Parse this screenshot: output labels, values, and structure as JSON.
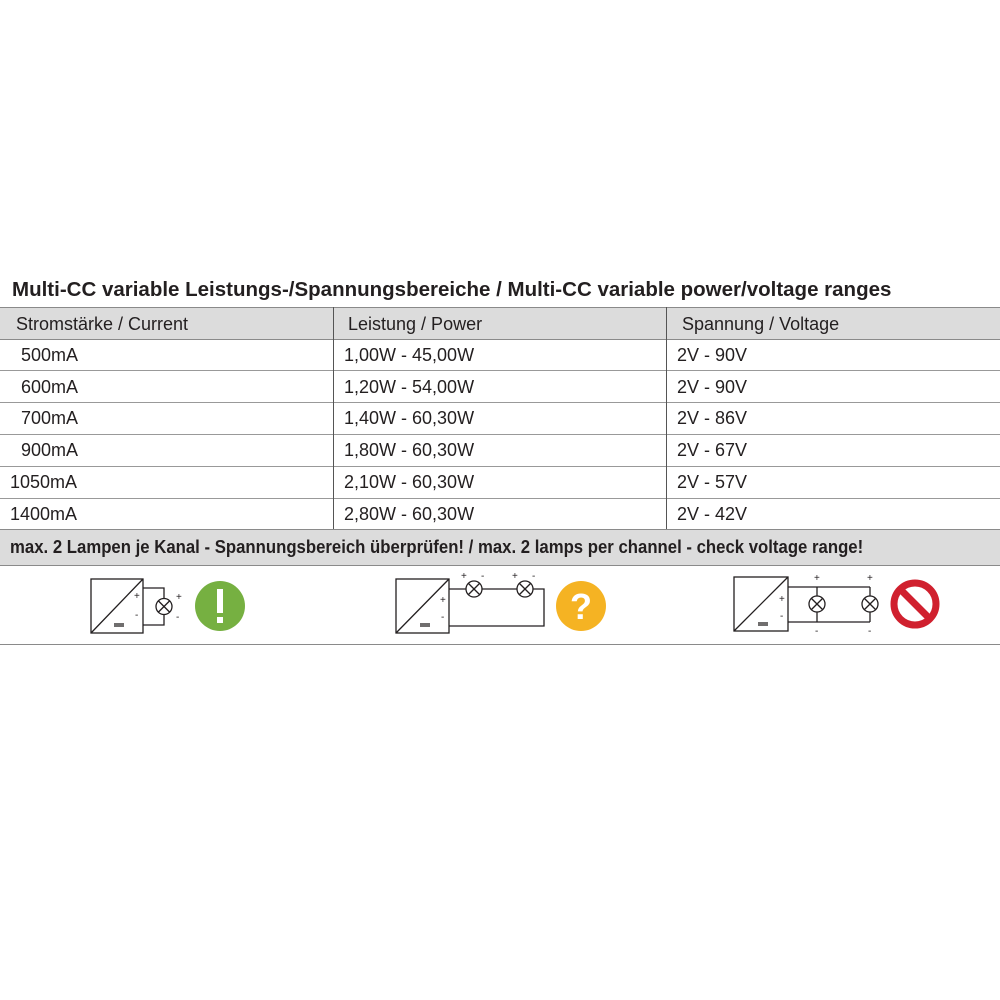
{
  "title": "Multi-CC variable Leistungs-/Spannungsbereiche / Multi-CC  variable power/voltage ranges",
  "table": {
    "headers": [
      "Stromstärke / Current",
      "Leistung / Power",
      "Spannung / Voltage"
    ],
    "rows": [
      [
        "500mA",
        "1,00W - 45,00W",
        "2V - 90V"
      ],
      [
        "600mA",
        "1,20W - 54,00W",
        "2V - 90V"
      ],
      [
        "700mA",
        "1,40W - 60,30W",
        "2V - 86V"
      ],
      [
        "900mA",
        "1,80W - 60,30W",
        "2V - 67V"
      ],
      [
        "1050mA",
        "2,10W - 60,30W",
        "2V - 57V"
      ],
      [
        "1400mA",
        "2,80W - 60,30W",
        "2V - 42V"
      ]
    ]
  },
  "warning": "max. 2 Lampen je Kanal - Spannungsbereich überprüfen! / max. 2 lamps per channel - check voltage range!",
  "diagrams": [
    {
      "wiring": "single-lamp",
      "status_icon": "exclamation-icon",
      "color": "#76b041"
    },
    {
      "wiring": "series-two-lamps",
      "status_icon": "question-icon",
      "color": "#f5b323"
    },
    {
      "wiring": "parallel-two-lamps",
      "status_icon": "prohibited-icon",
      "color": "#d0202e"
    }
  ]
}
